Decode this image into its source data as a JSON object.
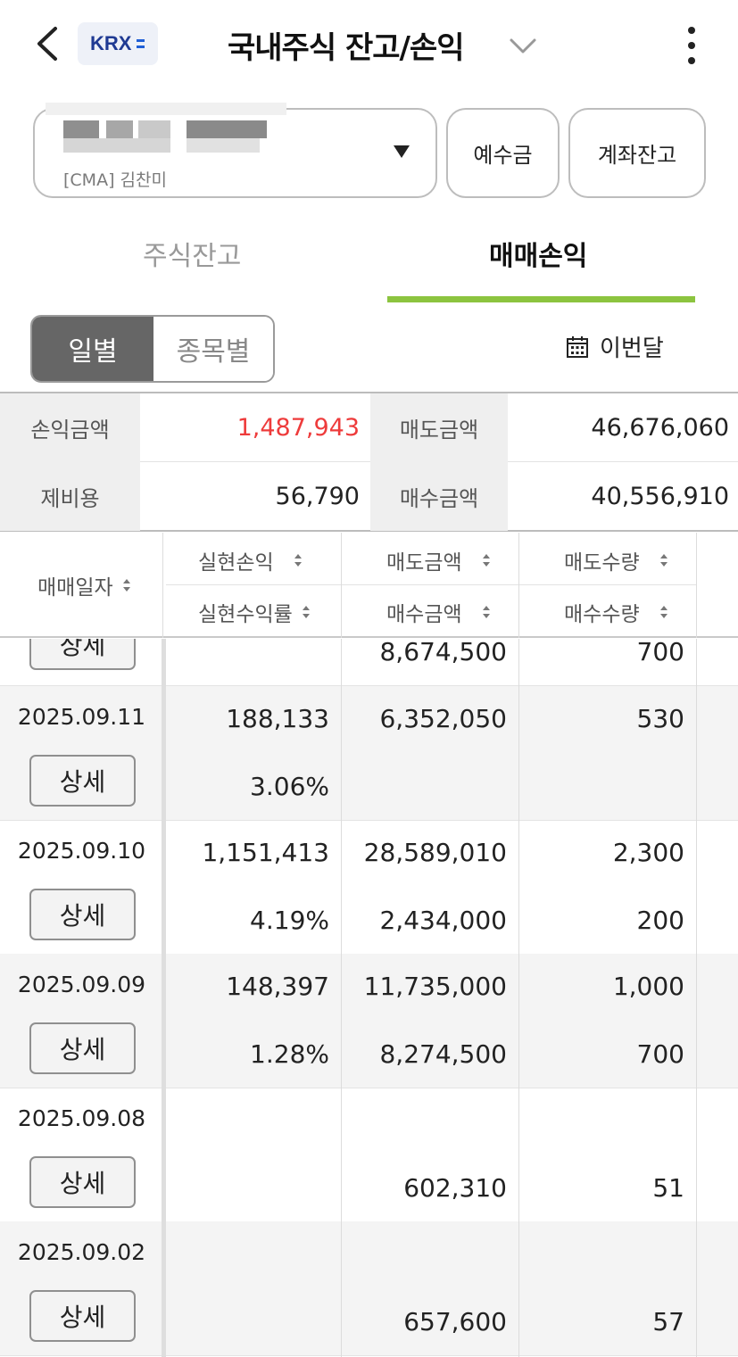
{
  "header": {
    "exchange_badge": "KRX",
    "title": "국내주식 잔고/손익"
  },
  "account": {
    "label": "[CMA] 김찬미",
    "deposit_button": "예수금",
    "balance_button": "계좌잔고"
  },
  "tabs": [
    "주식잔고",
    "매매손익"
  ],
  "active_tab": "매매손익",
  "segmented": [
    "일별",
    "종목별"
  ],
  "period_label": "이번달",
  "summary": {
    "pl_label": "손익금액",
    "pl_value": "1,487,943",
    "sell_label": "매도금액",
    "sell_value": "46,676,060",
    "fee_label": "제비용",
    "fee_value": "56,790",
    "buy_label": "매수금액",
    "buy_value": "40,556,910"
  },
  "table_header": {
    "date": "매매일자",
    "realized_pl": "실현손익",
    "realized_rate": "실현수익률",
    "sell_amount": "매도금액",
    "buy_amount": "매수금액",
    "sell_qty": "매도수량",
    "buy_qty": "매수수량"
  },
  "detail_label": "상세",
  "partial_row": {
    "buy_amount": "8,674,500",
    "buy_qty": "700"
  },
  "rows": [
    {
      "date": "2025.09.11",
      "realized_pl": "188,133",
      "realized_rate": "3.06%",
      "sell_amount": "6,352,050",
      "buy_amount": "",
      "sell_qty": "530",
      "buy_qty": ""
    },
    {
      "date": "2025.09.10",
      "realized_pl": "1,151,413",
      "realized_rate": "4.19%",
      "sell_amount": "28,589,010",
      "buy_amount": "2,434,000",
      "sell_qty": "2,300",
      "buy_qty": "200"
    },
    {
      "date": "2025.09.09",
      "realized_pl": "148,397",
      "realized_rate": "1.28%",
      "sell_amount": "11,735,000",
      "buy_amount": "8,274,500",
      "sell_qty": "1,000",
      "buy_qty": "700"
    },
    {
      "date": "2025.09.08",
      "realized_pl": "",
      "realized_rate": "",
      "sell_amount": "",
      "buy_amount": "602,310",
      "sell_qty": "",
      "buy_qty": "51"
    },
    {
      "date": "2025.09.02",
      "realized_pl": "",
      "realized_rate": "",
      "sell_amount": "",
      "buy_amount": "657,600",
      "sell_qty": "",
      "buy_qty": "57"
    }
  ],
  "colors": {
    "profit": "#ee3b3b",
    "tab_accent": "#8cc43f",
    "badge_text": "#1f3a93"
  }
}
